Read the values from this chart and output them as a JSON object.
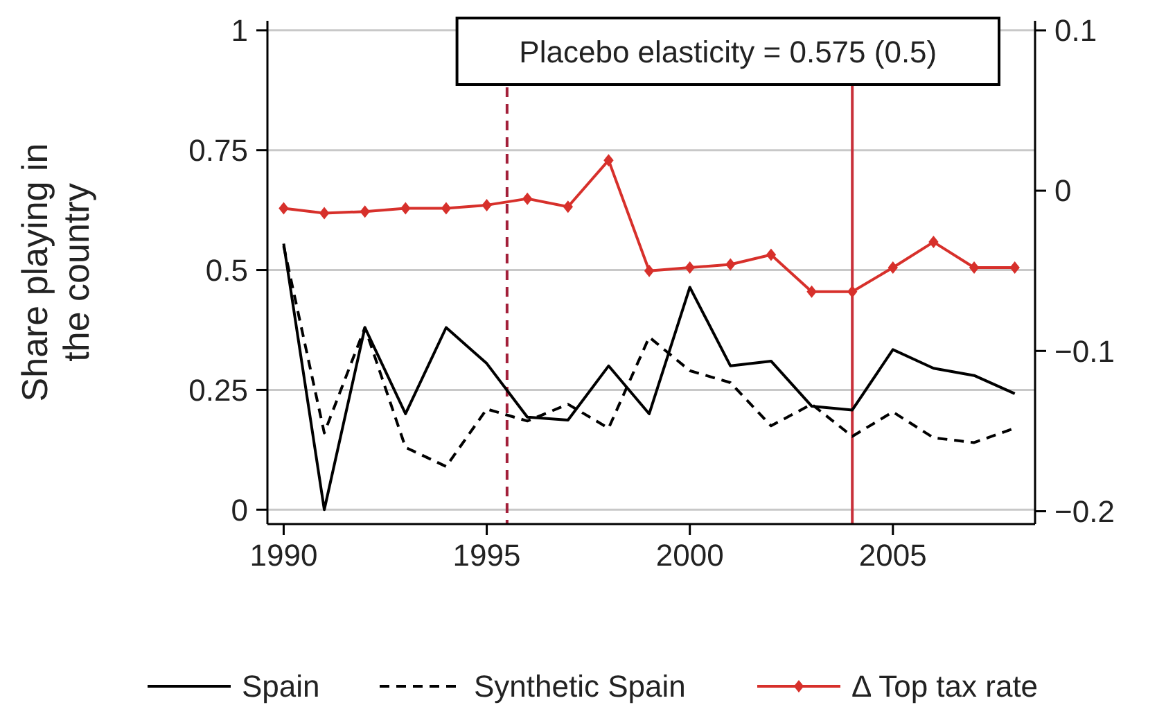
{
  "chart_data": {
    "type": "line",
    "ylabel": "Share playing in the country",
    "x": [
      1990,
      1991,
      1992,
      1993,
      1994,
      1995,
      1996,
      1997,
      1998,
      1999,
      2000,
      2001,
      2002,
      2003,
      2004,
      2005,
      2006,
      2007,
      2008
    ],
    "xlim": [
      1989.6,
      2008.5
    ],
    "xticks": [
      1990,
      1995,
      2000,
      2005
    ],
    "ylim": [
      -0.03,
      1.02
    ],
    "yticks": [
      0,
      0.25,
      0.5,
      0.75,
      1
    ],
    "y2lim": [
      -0.208,
      0.106
    ],
    "y2ticks": [
      {
        "value": -0.2,
        "label": "−0.2"
      },
      {
        "value": -0.1,
        "label": "−0.1"
      },
      0,
      0.1
    ],
    "grid": "y",
    "legend": "bottom",
    "series": [
      {
        "name": "Spain",
        "color": "#000000",
        "line_style": "solid",
        "marker": "none",
        "values": [
          0.555,
          0,
          0.38,
          0.2,
          0.38,
          0.305,
          0.193,
          0.187,
          0.3,
          0.2,
          0.464,
          0.3,
          0.31,
          0.216,
          0.208,
          0.334,
          0.295,
          0.28,
          0.242
        ]
      },
      {
        "name": "Synthetic Spain",
        "color": "#000000",
        "line_style": "dashed",
        "marker": "none",
        "values": [
          0.55,
          0.16,
          0.38,
          0.13,
          0.09,
          0.21,
          0.185,
          0.22,
          0.17,
          0.36,
          0.29,
          0.265,
          0.175,
          0.22,
          0.153,
          0.204,
          0.15,
          0.14,
          0.17
        ]
      },
      {
        "name": "Δ Top tax rate",
        "color": "#d7302b",
        "line_style": "solid",
        "marker": "diamond",
        "axis": "y2",
        "values": [
          -0.011,
          -0.014,
          -0.013,
          -0.011,
          -0.011,
          -0.009,
          -0.005,
          -0.01,
          0.019,
          -0.05,
          -0.048,
          -0.046,
          -0.04,
          -0.063,
          -0.063,
          -0.048,
          -0.032,
          -0.048,
          -0.048
        ]
      }
    ],
    "ref_lines": [
      {
        "axis": "x",
        "value": 1995.5,
        "color": "#a3203a",
        "line_style": "dashed"
      },
      {
        "axis": "x",
        "value": 2004,
        "color": "#c8303a",
        "line_style": "solid"
      }
    ],
    "annotations": [
      "Placebo elasticity = 0.575 (0.5)"
    ]
  }
}
